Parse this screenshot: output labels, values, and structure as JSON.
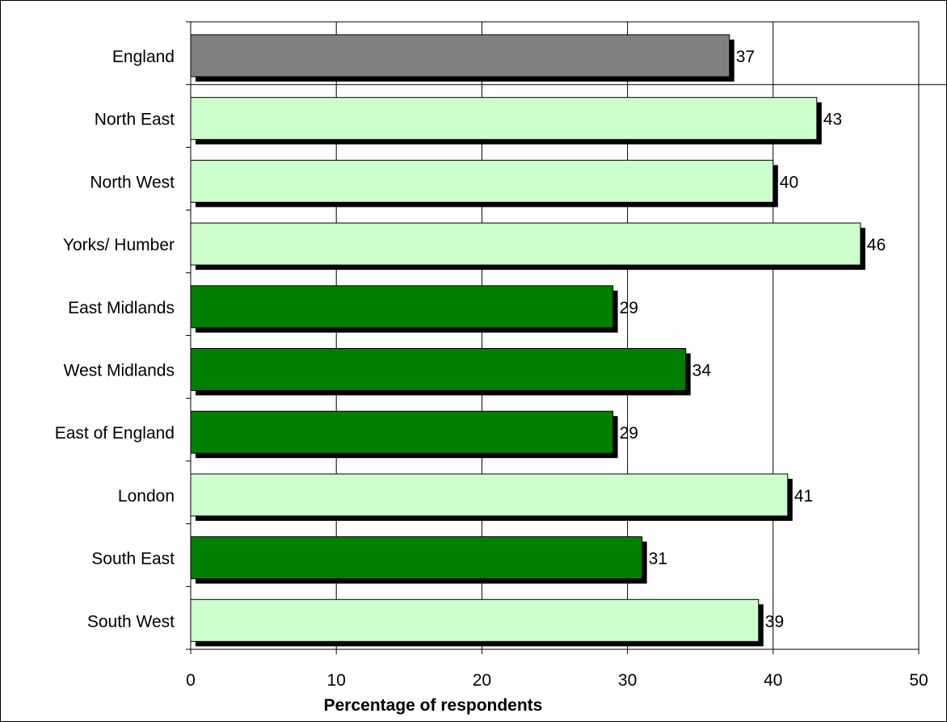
{
  "chart_data": {
    "type": "bar",
    "orientation": "horizontal",
    "title": "",
    "xlabel": "Percentage of respondents",
    "ylabel": "",
    "xlim": [
      0,
      50
    ],
    "x_ticks": [
      0,
      10,
      20,
      30,
      40,
      50
    ],
    "grid": true,
    "data_labels": true,
    "colors": {
      "england": "#808080",
      "above_average": "#ccffcc",
      "below_average": "#008000",
      "shadow": "#000000",
      "gridline": "#000000"
    },
    "categories": [
      "England",
      "North East",
      "North West",
      "Yorks/ Humber",
      "East Midlands",
      "West Midlands",
      "East of England",
      "London",
      "South East",
      "South West"
    ],
    "values": [
      37,
      43,
      40,
      46,
      29,
      34,
      29,
      41,
      31,
      39
    ],
    "bar_color_keys": [
      "england",
      "above_average",
      "above_average",
      "above_average",
      "below_average",
      "below_average",
      "below_average",
      "above_average",
      "below_average",
      "above_average"
    ]
  }
}
